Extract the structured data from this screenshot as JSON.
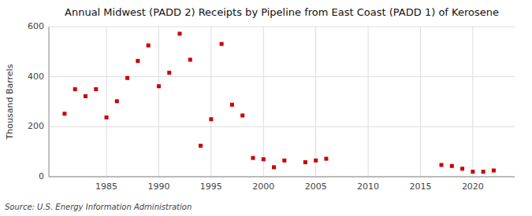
{
  "chart_data": {
    "type": "scatter",
    "title": "Annual Midwest (PADD 2) Receipts by Pipeline from East Coast (PADD 1) of Kerosene",
    "y_label": "Thousand Barrels",
    "annotations": [
      "Source: U.S. Energy Information Administration"
    ],
    "color": "#cc0000",
    "marker": "square",
    "grid": true,
    "xlim": [
      1979.5,
      2024
    ],
    "xticks": [
      1985,
      1990,
      1995,
      2000,
      2005,
      2010,
      2015,
      2020
    ],
    "ylim": [
      0,
      600
    ],
    "yticks": [
      0,
      200,
      400,
      600
    ],
    "x": [
      1981,
      1982,
      1983,
      1984,
      1985,
      1986,
      1987,
      1988,
      1989,
      1990,
      1991,
      1992,
      1993,
      1994,
      1995,
      1996,
      1997,
      1998,
      1999,
      2000,
      2001,
      2002,
      2004,
      2005,
      2006,
      2017,
      2018,
      2019,
      2020,
      2021,
      2022
    ],
    "values": [
      252,
      350,
      322,
      350,
      237,
      302,
      395,
      463,
      525,
      362,
      416,
      572,
      468,
      124,
      230,
      531,
      288,
      245,
      75,
      70,
      38,
      65,
      58,
      65,
      72,
      47,
      43,
      32,
      20,
      20,
      25
    ]
  }
}
